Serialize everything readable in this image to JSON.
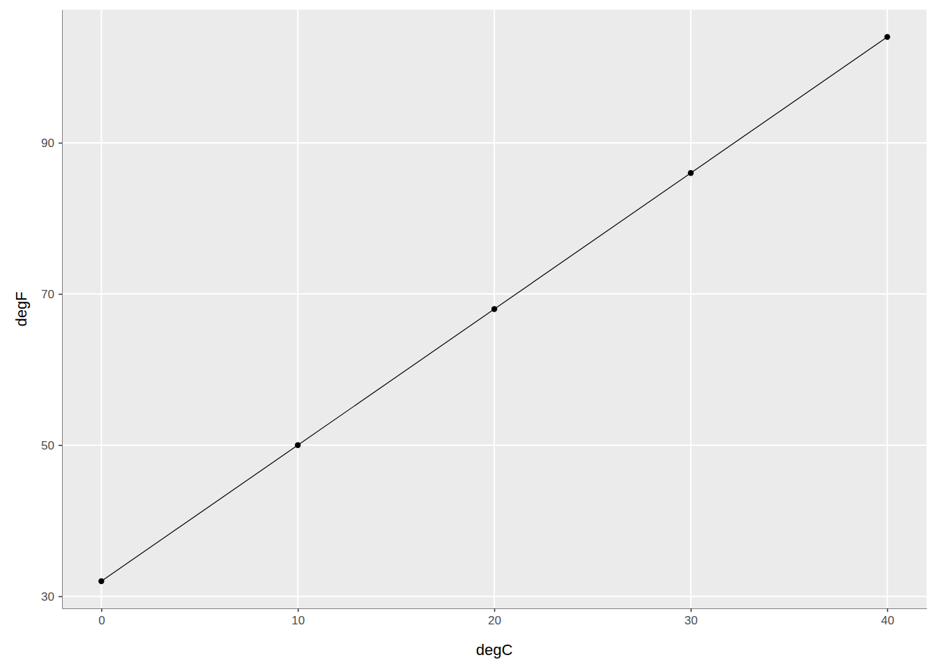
{
  "chart_data": {
    "type": "line",
    "x": [
      0,
      10,
      20,
      30,
      40
    ],
    "values": [
      32,
      50,
      68,
      86,
      104
    ],
    "x_label": "degC",
    "y_label": "degF",
    "xlim": [
      -2,
      42
    ],
    "ylim": [
      28.4,
      107.6
    ],
    "xticks": [
      0,
      10,
      20,
      30,
      40
    ],
    "yticks": [
      30,
      50,
      70,
      90
    ],
    "grid": true,
    "marker": "circle",
    "color": "#000000"
  }
}
